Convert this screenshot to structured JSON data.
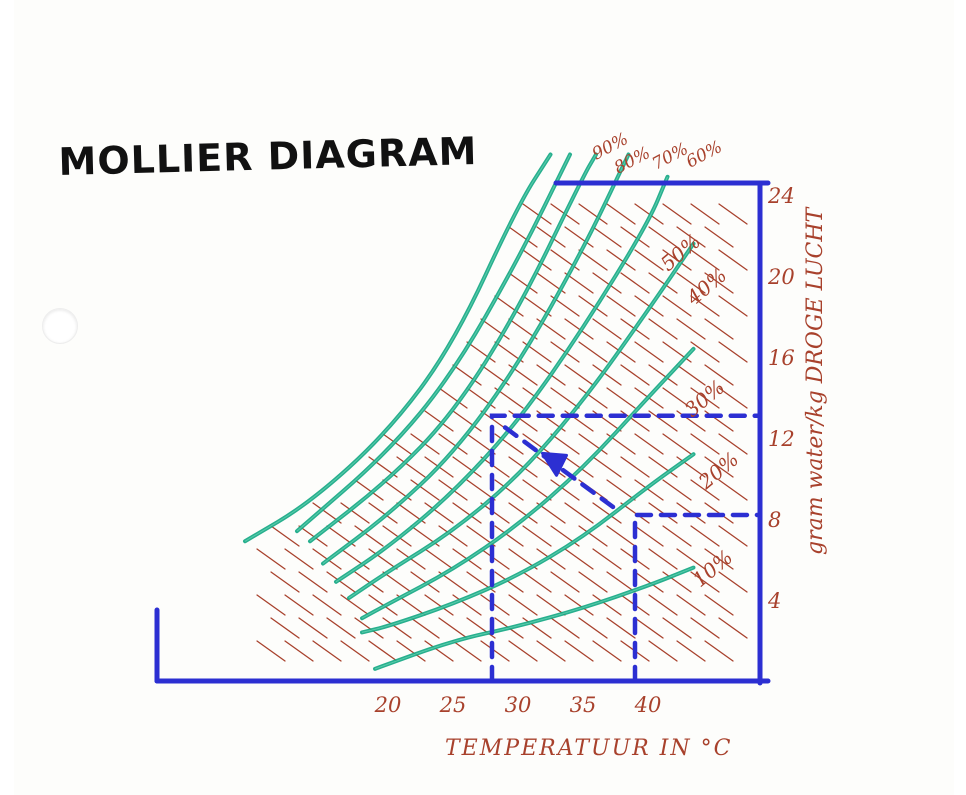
{
  "title": "MOLLIER DIAGRAM",
  "chart_data": {
    "type": "line",
    "xlabel": "TEMPERATUUR IN °C",
    "ylabel": "gram water/kg DROGE LUCHT",
    "x_ticks": [
      "20",
      "25",
      "30",
      "35",
      "40"
    ],
    "y_ticks": [
      "4",
      "8",
      "12",
      "16",
      "20",
      "24"
    ],
    "xlim": [
      9,
      44
    ],
    "ylim": [
      0,
      26
    ],
    "series": [
      {
        "name": "90%",
        "points": [
          [
            9,
            6.9
          ],
          [
            14,
            8.8
          ],
          [
            20,
            12.3
          ],
          [
            25,
            16.6
          ],
          [
            30,
            23.5
          ],
          [
            32.5,
            26.0
          ]
        ]
      },
      {
        "name": "80%",
        "points": [
          [
            13,
            7.4
          ],
          [
            20,
            11.3
          ],
          [
            25,
            15.2
          ],
          [
            30,
            20.8
          ],
          [
            34,
            26.0
          ]
        ]
      },
      {
        "name": "70%",
        "points": [
          [
            14,
            6.9
          ],
          [
            20,
            9.9
          ],
          [
            25,
            13.2
          ],
          [
            30,
            18.3
          ],
          [
            35,
            24.9
          ],
          [
            36,
            26.0
          ]
        ]
      },
      {
        "name": "60%",
        "points": [
          [
            15,
            5.8
          ],
          [
            20,
            8.2
          ],
          [
            25,
            11.2
          ],
          [
            30,
            15.6
          ],
          [
            35,
            21.3
          ],
          [
            38.5,
            26.0
          ]
        ]
      },
      {
        "name": "50%",
        "points": [
          [
            16,
            4.9
          ],
          [
            20,
            6.6
          ],
          [
            25,
            9.3
          ],
          [
            30,
            12.8
          ],
          [
            35,
            17.4
          ],
          [
            40,
            22.6
          ],
          [
            41.5,
            24.9
          ]
        ]
      },
      {
        "name": "40%",
        "points": [
          [
            17,
            4.1
          ],
          [
            20,
            5.4
          ],
          [
            25,
            7.4
          ],
          [
            30,
            10.1
          ],
          [
            35,
            13.8
          ],
          [
            40,
            18.3
          ],
          [
            43.5,
            21.6
          ]
        ]
      },
      {
        "name": "30%",
        "points": [
          [
            18,
            3.1
          ],
          [
            20,
            3.8
          ],
          [
            25,
            5.5
          ],
          [
            30,
            7.7
          ],
          [
            35,
            10.5
          ],
          [
            40,
            14.0
          ],
          [
            43.5,
            16.4
          ]
        ]
      },
      {
        "name": "20%",
        "points": [
          [
            18,
            2.4
          ],
          [
            20,
            2.7
          ],
          [
            25,
            3.8
          ],
          [
            30,
            5.2
          ],
          [
            35,
            7.1
          ],
          [
            40,
            9.6
          ],
          [
            43.5,
            11.2
          ]
        ]
      },
      {
        "name": "10%",
        "points": [
          [
            19,
            0.6
          ],
          [
            25,
            2.0
          ],
          [
            30,
            2.7
          ],
          [
            35,
            3.6
          ],
          [
            40,
            4.7
          ],
          [
            43.5,
            5.6
          ]
        ]
      }
    ],
    "example_path": {
      "state_a": {
        "temperature": 39,
        "humidity": 8.2
      },
      "state_b": {
        "temperature": 28,
        "humidity": 13.1
      }
    },
    "grid": false
  },
  "colors": {
    "frame": "#2c2fd2",
    "curve": "#16a884",
    "enthalpy": "#a8412c",
    "annotation": "#a8412c",
    "construction": "#2c2fd2",
    "title": "#111111"
  }
}
